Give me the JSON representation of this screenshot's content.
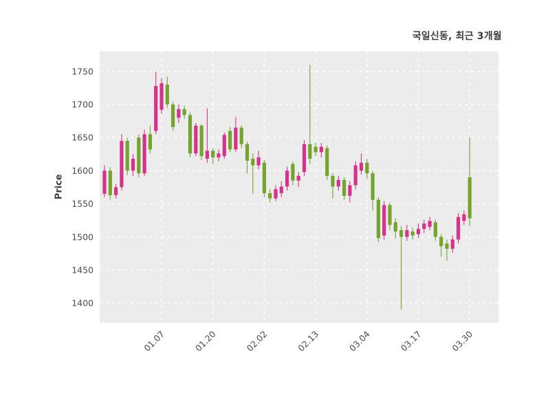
{
  "chart": {
    "title": "국일신동, 최근 3개월",
    "ylabel": "Price"
  },
  "chart_data": {
    "type": "candlestick",
    "title": "국일신동, 최근 3개월",
    "xlabel": "",
    "ylabel": "Price",
    "ylim": [
      1370,
      1780
    ],
    "y_ticks": [
      1400,
      1450,
      1500,
      1550,
      1600,
      1650,
      1700,
      1750
    ],
    "x_tick_labels": [
      "01.07",
      "01.20",
      "02.02",
      "02.13",
      "03.04",
      "03.17",
      "03.30"
    ],
    "x_tick_indices": [
      10,
      19,
      28,
      37,
      46,
      55,
      64
    ],
    "grid": true,
    "legend": false,
    "plot_bg": "#ececec",
    "grid_color": "#ffffff",
    "up_color": "#d5338b",
    "down_color": "#74a32e",
    "tick_color": "#4a4a4a",
    "candles_ohlc": [
      [
        1565,
        1608,
        1560,
        1600
      ],
      [
        1600,
        1605,
        1556,
        1563
      ],
      [
        1563,
        1580,
        1558,
        1575
      ],
      [
        1575,
        1655,
        1570,
        1645
      ],
      [
        1645,
        1650,
        1593,
        1600
      ],
      [
        1600,
        1625,
        1592,
        1618
      ],
      [
        1650,
        1655,
        1590,
        1596
      ],
      [
        1596,
        1662,
        1592,
        1655
      ],
      [
        1655,
        1668,
        1626,
        1632
      ],
      [
        1660,
        1750,
        1655,
        1728
      ],
      [
        1692,
        1740,
        1686,
        1732
      ],
      [
        1730,
        1742,
        1695,
        1700
      ],
      [
        1700,
        1704,
        1660,
        1666
      ],
      [
        1680,
        1700,
        1672,
        1693
      ],
      [
        1693,
        1698,
        1678,
        1684
      ],
      [
        1684,
        1688,
        1620,
        1626
      ],
      [
        1626,
        1672,
        1622,
        1668
      ],
      [
        1668,
        1670,
        1616,
        1622
      ],
      [
        1618,
        1694,
        1612,
        1630
      ],
      [
        1630,
        1634,
        1610,
        1620
      ],
      [
        1620,
        1632,
        1614,
        1626
      ],
      [
        1622,
        1658,
        1618,
        1654
      ],
      [
        1660,
        1666,
        1628,
        1632
      ],
      [
        1632,
        1681,
        1628,
        1665
      ],
      [
        1665,
        1668,
        1634,
        1640
      ],
      [
        1640,
        1644,
        1596,
        1615
      ],
      [
        1618,
        1626,
        1565,
        1608
      ],
      [
        1608,
        1630,
        1602,
        1620
      ],
      [
        1612,
        1616,
        1560,
        1566
      ],
      [
        1566,
        1572,
        1552,
        1558
      ],
      [
        1558,
        1578,
        1554,
        1572
      ],
      [
        1566,
        1584,
        1560,
        1576
      ],
      [
        1576,
        1606,
        1570,
        1600
      ],
      [
        1610,
        1614,
        1578,
        1585
      ],
      [
        1585,
        1598,
        1575,
        1592
      ],
      [
        1598,
        1646,
        1592,
        1640
      ],
      [
        1640,
        1760,
        1610,
        1618
      ],
      [
        1636,
        1642,
        1622,
        1628
      ],
      [
        1628,
        1642,
        1620,
        1636
      ],
      [
        1634,
        1638,
        1586,
        1592
      ],
      [
        1592,
        1596,
        1558,
        1576
      ],
      [
        1576,
        1592,
        1570,
        1586
      ],
      [
        1586,
        1590,
        1556,
        1562
      ],
      [
        1562,
        1584,
        1552,
        1578
      ],
      [
        1578,
        1614,
        1572,
        1608
      ],
      [
        1600,
        1626,
        1594,
        1612
      ],
      [
        1612,
        1618,
        1588,
        1596
      ],
      [
        1596,
        1600,
        1540,
        1556
      ],
      [
        1556,
        1560,
        1492,
        1498
      ],
      [
        1502,
        1554,
        1496,
        1548
      ],
      [
        1548,
        1552,
        1510,
        1518
      ],
      [
        1522,
        1528,
        1498,
        1508
      ],
      [
        1510,
        1516,
        1390,
        1500
      ],
      [
        1500,
        1518,
        1494,
        1510
      ],
      [
        1508,
        1514,
        1496,
        1502
      ],
      [
        1504,
        1520,
        1498,
        1512
      ],
      [
        1512,
        1526,
        1506,
        1520
      ],
      [
        1515,
        1530,
        1510,
        1524
      ],
      [
        1522,
        1526,
        1494,
        1500
      ],
      [
        1500,
        1504,
        1470,
        1486
      ],
      [
        1490,
        1496,
        1464,
        1482
      ],
      [
        1482,
        1502,
        1476,
        1496
      ],
      [
        1496,
        1536,
        1490,
        1530
      ],
      [
        1524,
        1540,
        1518,
        1534
      ],
      [
        1590,
        1650,
        1516,
        1528
      ]
    ]
  }
}
